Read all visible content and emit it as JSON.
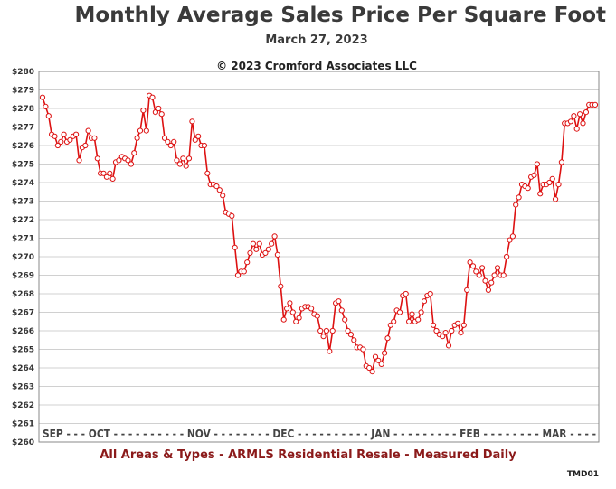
{
  "header": {
    "title": "Monthly Average Sales Price Per Square Foot",
    "date": "March 27, 2023",
    "copyright": "© 2023 Cromford Associates LLC"
  },
  "footer": {
    "caption": "All Areas & Types - ARMLS Residential Resale - Measured Daily",
    "code": "TMD01"
  },
  "colors": {
    "line": "#dd1111",
    "marker_fill": "#ffffff",
    "grid": "#d0d0d0",
    "caption": "#8b1a1a"
  },
  "chart_data": {
    "type": "line",
    "title": "Monthly Average Sales Price Per Square Foot",
    "ylim": [
      260,
      280
    ],
    "yticks": [
      "$260",
      "$261",
      "$262",
      "$263",
      "$264",
      "$265",
      "$266",
      "$267",
      "$268",
      "$269",
      "$270",
      "$271",
      "$272",
      "$273",
      "$274",
      "$275",
      "$276",
      "$277",
      "$278",
      "$279",
      "$280"
    ],
    "x_axis_text": "SEP - - - OCT - - - - - - - - - - NOV - - - - - - - - DEC - - - - - - - - - - JAN - - - - - - - - - FEB - - - - - - - - MAR - - - -",
    "x_month_labels": [
      "SEP",
      "OCT",
      "NOV",
      "DEC",
      "JAN",
      "FEB",
      "MAR"
    ],
    "grid": true,
    "series": [
      {
        "values": [
          278.6,
          278.1,
          277.6,
          276.6,
          276.5,
          276.0,
          276.2,
          276.6,
          276.2,
          276.3,
          276.5,
          276.6,
          275.2,
          275.9,
          276.0,
          276.8,
          276.4,
          276.4,
          275.3,
          274.5,
          274.5,
          274.3,
          274.5,
          274.2,
          275.1,
          275.2,
          275.4,
          275.3,
          275.2,
          275.0,
          275.6,
          276.4,
          276.8,
          277.9,
          276.8,
          278.7,
          278.6,
          277.8,
          278.0,
          277.7,
          276.4,
          276.2,
          276.0,
          276.2,
          275.2,
          275.0,
          275.3,
          274.9,
          275.3,
          277.3,
          276.3,
          276.5,
          276.0,
          276.0,
          274.5,
          273.9,
          273.9,
          273.8,
          273.6,
          273.3,
          272.4,
          272.3,
          272.2,
          270.5,
          269.0,
          269.2,
          269.2,
          269.7,
          270.2,
          270.7,
          270.4,
          270.7,
          270.1,
          270.2,
          270.4,
          270.7,
          271.1,
          270.1,
          268.4,
          266.6,
          267.2,
          267.5,
          267.0,
          266.5,
          266.7,
          267.2,
          267.3,
          267.3,
          267.2,
          266.9,
          266.8,
          266.0,
          265.7,
          266.0,
          264.9,
          266.0,
          267.5,
          267.6,
          267.1,
          266.6,
          266.0,
          265.8,
          265.5,
          265.1,
          265.1,
          265.0,
          264.1,
          264.0,
          263.8,
          264.6,
          264.4,
          264.2,
          264.8,
          265.6,
          266.3,
          266.5,
          267.1,
          267.0,
          267.9,
          268.0,
          266.5,
          266.9,
          266.5,
          266.6,
          267.0,
          267.6,
          267.9,
          268.0,
          266.3,
          266.0,
          265.8,
          265.7,
          265.9,
          265.2,
          266.0,
          266.3,
          266.4,
          265.9,
          266.3,
          268.2,
          269.7,
          269.5,
          269.2,
          269.0,
          269.4,
          268.7,
          268.2,
          268.6,
          269.0,
          269.4,
          269.0,
          269.0,
          270.0,
          270.9,
          271.1,
          272.8,
          273.2,
          273.9,
          273.8,
          273.7,
          274.3,
          274.4,
          275.0,
          273.4,
          273.9,
          273.9,
          274.0,
          274.2,
          273.1,
          273.9,
          275.1,
          277.2,
          277.2,
          277.3,
          277.6,
          276.9,
          277.7,
          277.2,
          277.8,
          278.2,
          278.2,
          278.2
        ]
      }
    ]
  }
}
